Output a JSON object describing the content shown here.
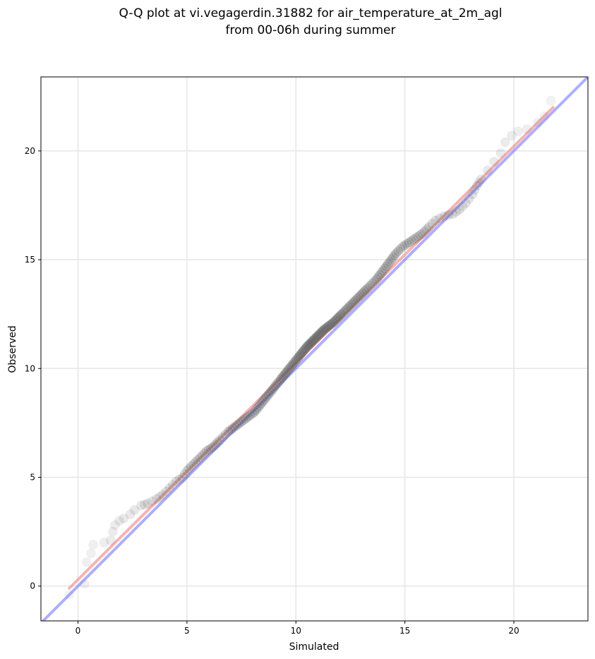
{
  "chart_data": {
    "type": "scatter",
    "title_line1": "Q-Q plot at vi.vegagerdin.31882 for air_temperature_at_2m_agl",
    "title_line2": "from 00-06h during summer",
    "xlabel": "Simulated",
    "ylabel": "Observed",
    "xlim": [
      -1.7,
      23.4
    ],
    "ylim": [
      -1.6,
      23.4
    ],
    "x_ticks": [
      0,
      5,
      10,
      15,
      20
    ],
    "y_ticks": [
      0,
      5,
      10,
      15,
      20
    ],
    "grid": true,
    "legend": "none",
    "reference_line": {
      "slope": 1,
      "intercept": 0,
      "color": "#6b6bff"
    },
    "fit_line": {
      "x": [
        -0.4,
        21.8
      ],
      "y": [
        -0.1,
        22.0
      ],
      "color": "#f08080"
    },
    "quantile_points": [
      [
        -0.4,
        -0.4
      ],
      [
        0.3,
        0.1
      ],
      [
        0.4,
        1.1
      ],
      [
        0.6,
        1.5
      ],
      [
        0.7,
        1.9
      ],
      [
        1.2,
        2.0
      ],
      [
        1.5,
        2.1
      ],
      [
        1.6,
        2.5
      ],
      [
        1.7,
        2.8
      ],
      [
        1.9,
        3.0
      ],
      [
        2.1,
        3.1
      ],
      [
        2.4,
        3.3
      ],
      [
        2.6,
        3.5
      ],
      [
        2.9,
        3.7
      ],
      [
        3.2,
        3.8
      ],
      [
        3.6,
        4.0
      ],
      [
        3.9,
        4.2
      ],
      [
        4.2,
        4.5
      ],
      [
        4.5,
        4.8
      ],
      [
        4.8,
        5.0
      ],
      [
        5.0,
        5.3
      ],
      [
        5.3,
        5.6
      ],
      [
        5.6,
        5.9
      ],
      [
        5.9,
        6.2
      ],
      [
        6.2,
        6.4
      ],
      [
        6.5,
        6.7
      ],
      [
        6.9,
        7.1
      ],
      [
        7.3,
        7.4
      ],
      [
        7.7,
        7.7
      ],
      [
        8.1,
        8.0
      ],
      [
        8.5,
        8.5
      ],
      [
        8.9,
        9.0
      ],
      [
        9.3,
        9.5
      ],
      [
        9.7,
        10.0
      ],
      [
        10.1,
        10.5
      ],
      [
        10.5,
        11.0
      ],
      [
        10.9,
        11.4
      ],
      [
        11.3,
        11.8
      ],
      [
        11.7,
        12.1
      ],
      [
        12.1,
        12.5
      ],
      [
        12.5,
        12.9
      ],
      [
        12.9,
        13.3
      ],
      [
        13.3,
        13.7
      ],
      [
        13.7,
        14.1
      ],
      [
        14.0,
        14.5
      ],
      [
        14.3,
        14.9
      ],
      [
        14.6,
        15.3
      ],
      [
        14.9,
        15.6
      ],
      [
        15.2,
        15.8
      ],
      [
        15.5,
        16.0
      ],
      [
        15.8,
        16.2
      ],
      [
        16.1,
        16.5
      ],
      [
        16.4,
        16.8
      ],
      [
        16.8,
        17.0
      ],
      [
        17.2,
        17.1
      ],
      [
        17.5,
        17.3
      ],
      [
        17.8,
        17.6
      ],
      [
        18.1,
        18.0
      ],
      [
        18.3,
        18.4
      ],
      [
        18.5,
        18.7
      ],
      [
        18.8,
        19.1
      ],
      [
        19.1,
        19.5
      ],
      [
        19.4,
        19.9
      ],
      [
        19.6,
        20.4
      ],
      [
        19.9,
        20.7
      ],
      [
        20.2,
        20.9
      ],
      [
        20.6,
        21.0
      ],
      [
        21.1,
        21.3
      ],
      [
        21.4,
        21.6
      ],
      [
        21.7,
        22.3
      ]
    ]
  }
}
